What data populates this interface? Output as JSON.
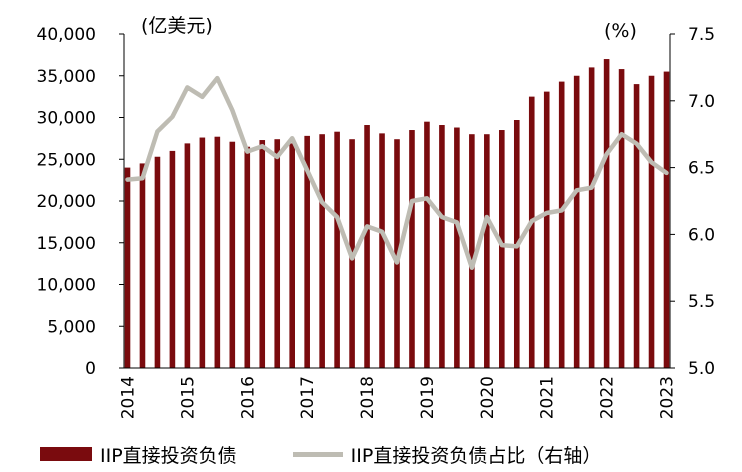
{
  "chart_data": {
    "type": "bar+line",
    "left_unit": "(亿美元)",
    "right_unit": "(%)",
    "left_axis": {
      "min": 0,
      "max": 40000,
      "step": 5000,
      "ticks": [
        "0",
        "5,000",
        "10,000",
        "15,000",
        "20,000",
        "25,000",
        "30,000",
        "35,000",
        "40,000"
      ]
    },
    "right_axis": {
      "min": 5.0,
      "max": 7.5,
      "step": 0.5,
      "ticks": [
        "5.0",
        "5.5",
        "6.0",
        "6.5",
        "7.0",
        "7.5"
      ]
    },
    "x_labels": [
      "2014",
      "2015",
      "2016",
      "2017",
      "2018",
      "2019",
      "2020",
      "2021",
      "2022",
      "2023"
    ],
    "series": [
      {
        "name": "IIP直接投资负债",
        "axis": "left",
        "color": "#7a0b0e",
        "kind": "bar",
        "values": [
          24000,
          24500,
          25300,
          26000,
          26900,
          27600,
          27700,
          27100,
          26500,
          27300,
          27400,
          26900,
          27800,
          28000,
          28300,
          27400,
          29100,
          28100,
          27400,
          28500,
          29500,
          29100,
          28800,
          28000,
          28000,
          28500,
          29700,
          32500,
          33100,
          34300,
          35000,
          36000,
          37000,
          35800,
          34000,
          35000,
          35500
        ]
      },
      {
        "name": "IIP直接投资负债占比（右轴）",
        "axis": "right",
        "color": "#bebcb3",
        "kind": "line",
        "values": [
          6.41,
          6.42,
          6.77,
          6.88,
          7.1,
          7.03,
          7.17,
          6.93,
          6.62,
          6.66,
          6.58,
          6.72,
          6.48,
          6.24,
          6.13,
          5.82,
          6.06,
          6.02,
          5.79,
          6.25,
          6.27,
          6.13,
          6.09,
          5.75,
          6.13,
          5.92,
          5.91,
          6.1,
          6.16,
          6.18,
          6.33,
          6.35,
          6.6,
          6.75,
          6.68,
          6.54,
          6.46
        ]
      }
    ],
    "grid": false,
    "legend_position": "bottom"
  }
}
